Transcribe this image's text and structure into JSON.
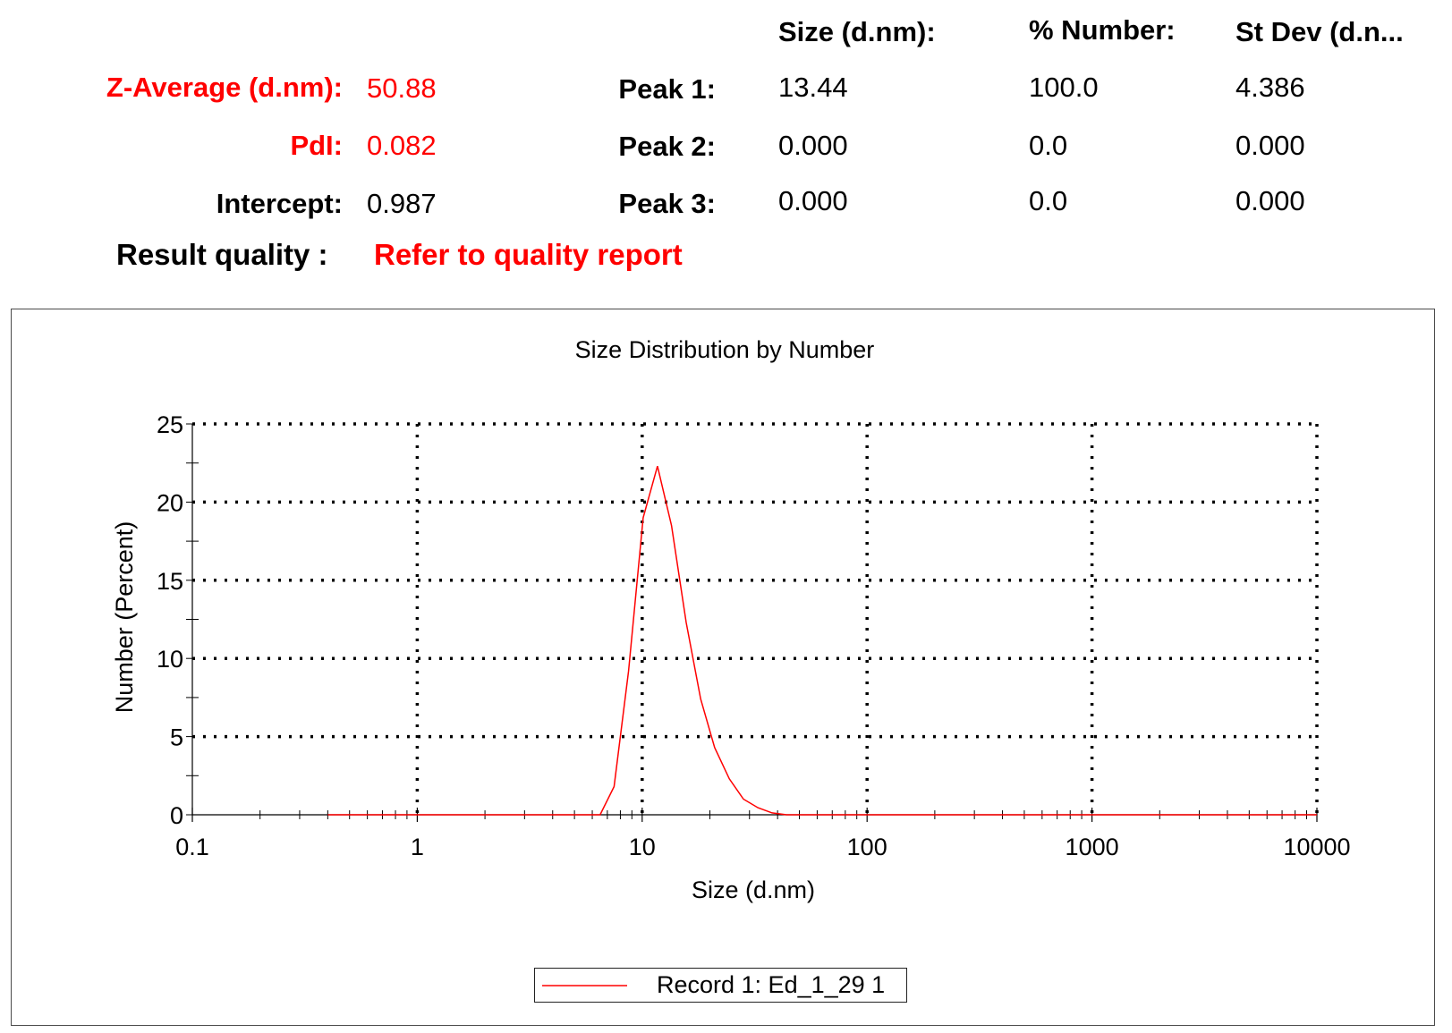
{
  "summary": {
    "zavg_label": "Z-Average (d.nm):",
    "zavg_value": "50.88",
    "pdi_label": "PdI:",
    "pdi_value": "0.082",
    "intercept_label": "Intercept:",
    "intercept_value": "0.987",
    "quality_label": "Result quality :",
    "quality_value": "Refer to quality report"
  },
  "peaks_table": {
    "headers": [
      "Size (d.nm):",
      "% Number:",
      "St Dev (d.n..."
    ],
    "rows": [
      {
        "label": "Peak 1:",
        "size": "13.44",
        "number": "100.0",
        "stdev": "4.386"
      },
      {
        "label": "Peak 2:",
        "size": "0.000",
        "number": "0.0",
        "stdev": "0.000"
      },
      {
        "label": "Peak 3:",
        "size": "0.000",
        "number": "0.0",
        "stdev": "0.000"
      }
    ]
  },
  "colors": {
    "highlight": "#ff0000",
    "series": "#ff0000",
    "grid": "#000000"
  },
  "chart_data": {
    "type": "line",
    "title": "Size Distribution by Number",
    "xlabel": "Size (d.nm)",
    "ylabel": "Number (Percent)",
    "xscale": "log",
    "xlim": [
      0.1,
      10000
    ],
    "ylim": [
      0,
      25
    ],
    "xticks": [
      "0.1",
      "1",
      "10",
      "100",
      "1000",
      "10000"
    ],
    "yticks": [
      "0",
      "5",
      "10",
      "15",
      "20",
      "25"
    ],
    "grid": "dotted",
    "legend_position": "bottom-center",
    "series": [
      {
        "name": "Record 1: Ed_1_29 1",
        "color": "#ff0000",
        "x": [
          0.4,
          6.5,
          7.5,
          8.7,
          10.1,
          11.7,
          13.5,
          15.7,
          18.2,
          21.0,
          24.4,
          28.2,
          32.7,
          37.8,
          43.8,
          10000
        ],
        "y": [
          0,
          0,
          1.8,
          9.2,
          19.0,
          22.3,
          18.5,
          12.3,
          7.4,
          4.3,
          2.3,
          1.0,
          0.45,
          0.12,
          0,
          0
        ]
      }
    ]
  }
}
